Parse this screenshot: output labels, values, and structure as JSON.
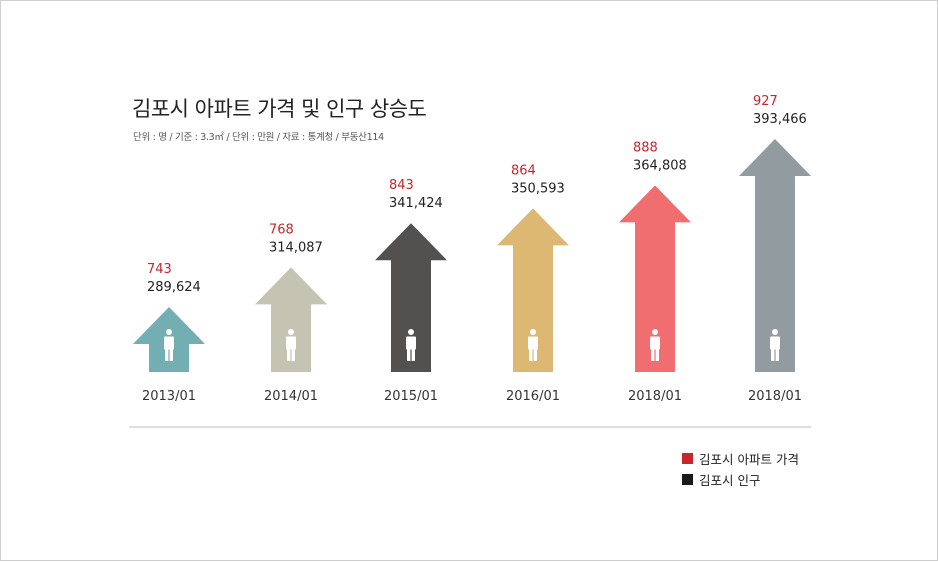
{
  "title": "김포시 아파트 가격 및 인구 상승도",
  "subtitle": "단위 : 명 / 기준 : 3.3㎡ / 단위 : 만원 / 자료 : 통계청 / 부동산114",
  "legend": [
    {
      "label": "김포시 아파트 가격",
      "color": "#c9252b"
    },
    {
      "label": "김포시 인구",
      "color": "#1a1a1a"
    }
  ],
  "colors": {
    "price_label": "#c9252b",
    "population_label": "#222222",
    "divider": "#bdbdbd",
    "person_icon": "#ffffff"
  },
  "chart_data": {
    "type": "bar",
    "style": "arrow-up with person icon",
    "categories": [
      "2013/01",
      "2014/01",
      "2015/01",
      "2016/01",
      "2018/01",
      "2018/01"
    ],
    "series": [
      {
        "name": "김포시 아파트 가격",
        "values": [
          743,
          768,
          843,
          864,
          888,
          927
        ]
      },
      {
        "name": "김포시 인구",
        "values": [
          289624,
          314087,
          341424,
          350593,
          364808,
          393466
        ]
      }
    ],
    "value_labels": {
      "price": [
        "743",
        "768",
        "843",
        "864",
        "888",
        "927"
      ],
      "population": [
        "289,624",
        "314,087",
        "341,424",
        "350,593",
        "364,808",
        "393,466"
      ]
    },
    "bar_colors": [
      "#73aeb3",
      "#c5c4b3",
      "#525150",
      "#dcb873",
      "#f06e6f",
      "#929ba0"
    ],
    "legend_position": "bottom-right"
  }
}
